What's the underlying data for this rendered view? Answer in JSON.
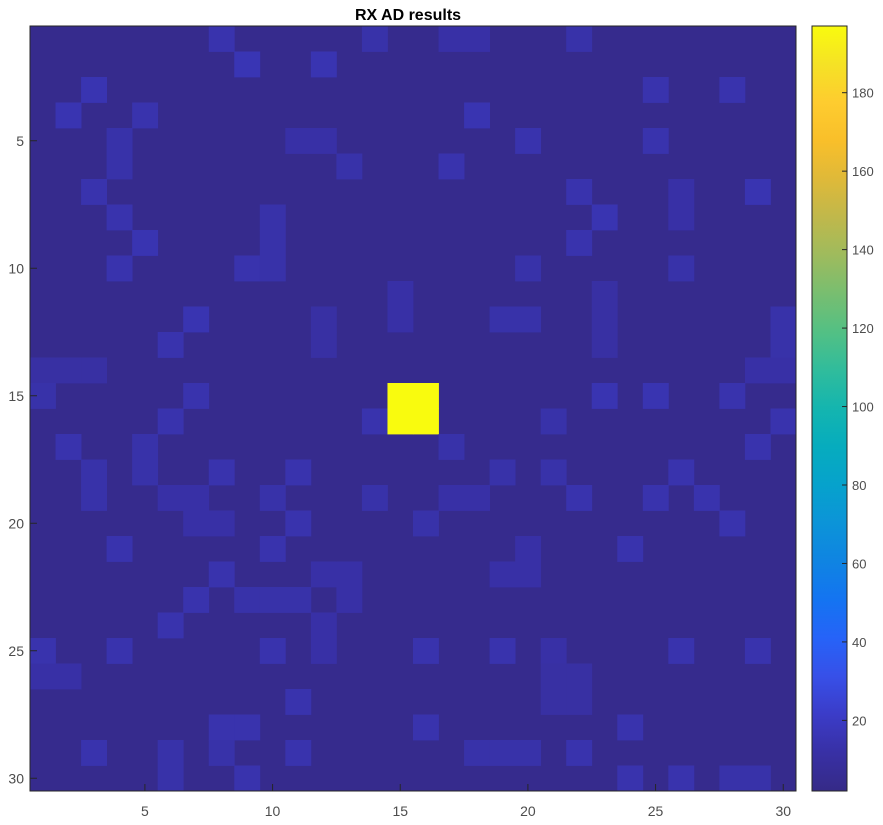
{
  "chart_data": {
    "type": "heatmap",
    "title": "RX AD results",
    "xlabel": "",
    "ylabel": "",
    "x_range": [
      0.5,
      30.5
    ],
    "y_range": [
      0.5,
      30.5
    ],
    "x_ticks": [
      5,
      10,
      15,
      20,
      25,
      30
    ],
    "y_ticks": [
      5,
      10,
      15,
      20,
      25,
      30
    ],
    "y_direction": "reversed",
    "colormap": "parula",
    "colorbar": {
      "location": "right",
      "range": [
        2,
        197
      ],
      "ticks": [
        20,
        40,
        60,
        80,
        100,
        120,
        140,
        160,
        180
      ]
    },
    "background_value": 4,
    "cells": [
      {
        "row": 1,
        "col": 8,
        "value": 14
      },
      {
        "row": 1,
        "col": 14,
        "value": 13
      },
      {
        "row": 1,
        "col": 17,
        "value": 12
      },
      {
        "row": 1,
        "col": 18,
        "value": 12
      },
      {
        "row": 1,
        "col": 22,
        "value": 13
      },
      {
        "row": 2,
        "col": 9,
        "value": 16
      },
      {
        "row": 2,
        "col": 12,
        "value": 15
      },
      {
        "row": 3,
        "col": 3,
        "value": 15
      },
      {
        "row": 3,
        "col": 25,
        "value": 14
      },
      {
        "row": 3,
        "col": 28,
        "value": 14
      },
      {
        "row": 4,
        "col": 2,
        "value": 15
      },
      {
        "row": 4,
        "col": 5,
        "value": 14
      },
      {
        "row": 4,
        "col": 18,
        "value": 15
      },
      {
        "row": 5,
        "col": 4,
        "value": 13
      },
      {
        "row": 5,
        "col": 11,
        "value": 12
      },
      {
        "row": 5,
        "col": 12,
        "value": 12
      },
      {
        "row": 5,
        "col": 20,
        "value": 14
      },
      {
        "row": 5,
        "col": 25,
        "value": 14
      },
      {
        "row": 6,
        "col": 4,
        "value": 13
      },
      {
        "row": 6,
        "col": 13,
        "value": 13
      },
      {
        "row": 6,
        "col": 17,
        "value": 14
      },
      {
        "row": 7,
        "col": 3,
        "value": 14
      },
      {
        "row": 7,
        "col": 22,
        "value": 14
      },
      {
        "row": 7,
        "col": 26,
        "value": 12
      },
      {
        "row": 7,
        "col": 29,
        "value": 15
      },
      {
        "row": 8,
        "col": 4,
        "value": 14
      },
      {
        "row": 8,
        "col": 10,
        "value": 13
      },
      {
        "row": 8,
        "col": 23,
        "value": 15
      },
      {
        "row": 8,
        "col": 26,
        "value": 12
      },
      {
        "row": 9,
        "col": 5,
        "value": 15
      },
      {
        "row": 9,
        "col": 10,
        "value": 13
      },
      {
        "row": 9,
        "col": 22,
        "value": 14
      },
      {
        "row": 10,
        "col": 4,
        "value": 14
      },
      {
        "row": 10,
        "col": 9,
        "value": 14
      },
      {
        "row": 10,
        "col": 10,
        "value": 13
      },
      {
        "row": 10,
        "col": 20,
        "value": 13
      },
      {
        "row": 10,
        "col": 26,
        "value": 13
      },
      {
        "row": 11,
        "col": 15,
        "value": 12
      },
      {
        "row": 11,
        "col": 23,
        "value": 11
      },
      {
        "row": 12,
        "col": 7,
        "value": 15
      },
      {
        "row": 12,
        "col": 12,
        "value": 11
      },
      {
        "row": 12,
        "col": 15,
        "value": 12
      },
      {
        "row": 12,
        "col": 19,
        "value": 13
      },
      {
        "row": 12,
        "col": 20,
        "value": 13
      },
      {
        "row": 12,
        "col": 23,
        "value": 11
      },
      {
        "row": 12,
        "col": 30,
        "value": 13
      },
      {
        "row": 13,
        "col": 6,
        "value": 14
      },
      {
        "row": 13,
        "col": 12,
        "value": 11
      },
      {
        "row": 13,
        "col": 23,
        "value": 11
      },
      {
        "row": 13,
        "col": 30,
        "value": 13
      },
      {
        "row": 14,
        "col": 1,
        "value": 11
      },
      {
        "row": 14,
        "col": 2,
        "value": 11
      },
      {
        "row": 14,
        "col": 3,
        "value": 11
      },
      {
        "row": 14,
        "col": 29,
        "value": 12
      },
      {
        "row": 14,
        "col": 30,
        "value": 12
      },
      {
        "row": 15,
        "col": 1,
        "value": 13
      },
      {
        "row": 15,
        "col": 7,
        "value": 14
      },
      {
        "row": 15,
        "col": 15,
        "value": 197
      },
      {
        "row": 15,
        "col": 16,
        "value": 197
      },
      {
        "row": 15,
        "col": 23,
        "value": 15
      },
      {
        "row": 15,
        "col": 25,
        "value": 15
      },
      {
        "row": 15,
        "col": 28,
        "value": 14
      },
      {
        "row": 16,
        "col": 6,
        "value": 14
      },
      {
        "row": 16,
        "col": 14,
        "value": 14
      },
      {
        "row": 16,
        "col": 15,
        "value": 197
      },
      {
        "row": 16,
        "col": 16,
        "value": 197
      },
      {
        "row": 16,
        "col": 21,
        "value": 13
      },
      {
        "row": 16,
        "col": 30,
        "value": 14
      },
      {
        "row": 17,
        "col": 2,
        "value": 14
      },
      {
        "row": 17,
        "col": 5,
        "value": 13
      },
      {
        "row": 17,
        "col": 17,
        "value": 13
      },
      {
        "row": 17,
        "col": 29,
        "value": 14
      },
      {
        "row": 18,
        "col": 3,
        "value": 13
      },
      {
        "row": 18,
        "col": 5,
        "value": 13
      },
      {
        "row": 18,
        "col": 8,
        "value": 14
      },
      {
        "row": 18,
        "col": 11,
        "value": 14
      },
      {
        "row": 18,
        "col": 19,
        "value": 13
      },
      {
        "row": 18,
        "col": 21,
        "value": 13
      },
      {
        "row": 18,
        "col": 26,
        "value": 14
      },
      {
        "row": 19,
        "col": 3,
        "value": 13
      },
      {
        "row": 19,
        "col": 6,
        "value": 12
      },
      {
        "row": 19,
        "col": 7,
        "value": 12
      },
      {
        "row": 19,
        "col": 10,
        "value": 13
      },
      {
        "row": 19,
        "col": 14,
        "value": 13
      },
      {
        "row": 19,
        "col": 17,
        "value": 12
      },
      {
        "row": 19,
        "col": 18,
        "value": 12
      },
      {
        "row": 19,
        "col": 22,
        "value": 14
      },
      {
        "row": 19,
        "col": 25,
        "value": 14
      },
      {
        "row": 19,
        "col": 27,
        "value": 14
      },
      {
        "row": 20,
        "col": 7,
        "value": 12
      },
      {
        "row": 20,
        "col": 8,
        "value": 12
      },
      {
        "row": 20,
        "col": 11,
        "value": 14
      },
      {
        "row": 20,
        "col": 16,
        "value": 13
      },
      {
        "row": 20,
        "col": 28,
        "value": 14
      },
      {
        "row": 21,
        "col": 4,
        "value": 14
      },
      {
        "row": 21,
        "col": 10,
        "value": 14
      },
      {
        "row": 21,
        "col": 20,
        "value": 12
      },
      {
        "row": 21,
        "col": 24,
        "value": 14
      },
      {
        "row": 22,
        "col": 8,
        "value": 14
      },
      {
        "row": 22,
        "col": 12,
        "value": 12
      },
      {
        "row": 22,
        "col": 13,
        "value": 12
      },
      {
        "row": 22,
        "col": 19,
        "value": 12
      },
      {
        "row": 22,
        "col": 20,
        "value": 12
      },
      {
        "row": 23,
        "col": 7,
        "value": 14
      },
      {
        "row": 23,
        "col": 9,
        "value": 13
      },
      {
        "row": 23,
        "col": 10,
        "value": 13
      },
      {
        "row": 23,
        "col": 11,
        "value": 13
      },
      {
        "row": 23,
        "col": 13,
        "value": 12
      },
      {
        "row": 24,
        "col": 6,
        "value": 14
      },
      {
        "row": 24,
        "col": 12,
        "value": 12
      },
      {
        "row": 25,
        "col": 1,
        "value": 14
      },
      {
        "row": 25,
        "col": 4,
        "value": 14
      },
      {
        "row": 25,
        "col": 10,
        "value": 14
      },
      {
        "row": 25,
        "col": 12,
        "value": 12
      },
      {
        "row": 25,
        "col": 16,
        "value": 14
      },
      {
        "row": 25,
        "col": 19,
        "value": 14
      },
      {
        "row": 25,
        "col": 21,
        "value": 12
      },
      {
        "row": 25,
        "col": 26,
        "value": 14
      },
      {
        "row": 25,
        "col": 29,
        "value": 14
      },
      {
        "row": 26,
        "col": 1,
        "value": 12
      },
      {
        "row": 26,
        "col": 2,
        "value": 12
      },
      {
        "row": 26,
        "col": 21,
        "value": 11
      },
      {
        "row": 26,
        "col": 22,
        "value": 11
      },
      {
        "row": 27,
        "col": 11,
        "value": 14
      },
      {
        "row": 27,
        "col": 21,
        "value": 11
      },
      {
        "row": 27,
        "col": 22,
        "value": 11
      },
      {
        "row": 28,
        "col": 8,
        "value": 14
      },
      {
        "row": 28,
        "col": 9,
        "value": 14
      },
      {
        "row": 28,
        "col": 16,
        "value": 14
      },
      {
        "row": 28,
        "col": 24,
        "value": 14
      },
      {
        "row": 29,
        "col": 3,
        "value": 14
      },
      {
        "row": 29,
        "col": 6,
        "value": 13
      },
      {
        "row": 29,
        "col": 8,
        "value": 13
      },
      {
        "row": 29,
        "col": 11,
        "value": 14
      },
      {
        "row": 29,
        "col": 18,
        "value": 13
      },
      {
        "row": 29,
        "col": 19,
        "value": 13
      },
      {
        "row": 29,
        "col": 20,
        "value": 13
      },
      {
        "row": 29,
        "col": 22,
        "value": 14
      },
      {
        "row": 30,
        "col": 6,
        "value": 13
      },
      {
        "row": 30,
        "col": 9,
        "value": 14
      },
      {
        "row": 30,
        "col": 24,
        "value": 14
      },
      {
        "row": 30,
        "col": 26,
        "value": 14
      },
      {
        "row": 30,
        "col": 28,
        "value": 13
      },
      {
        "row": 30,
        "col": 29,
        "value": 13
      }
    ]
  }
}
